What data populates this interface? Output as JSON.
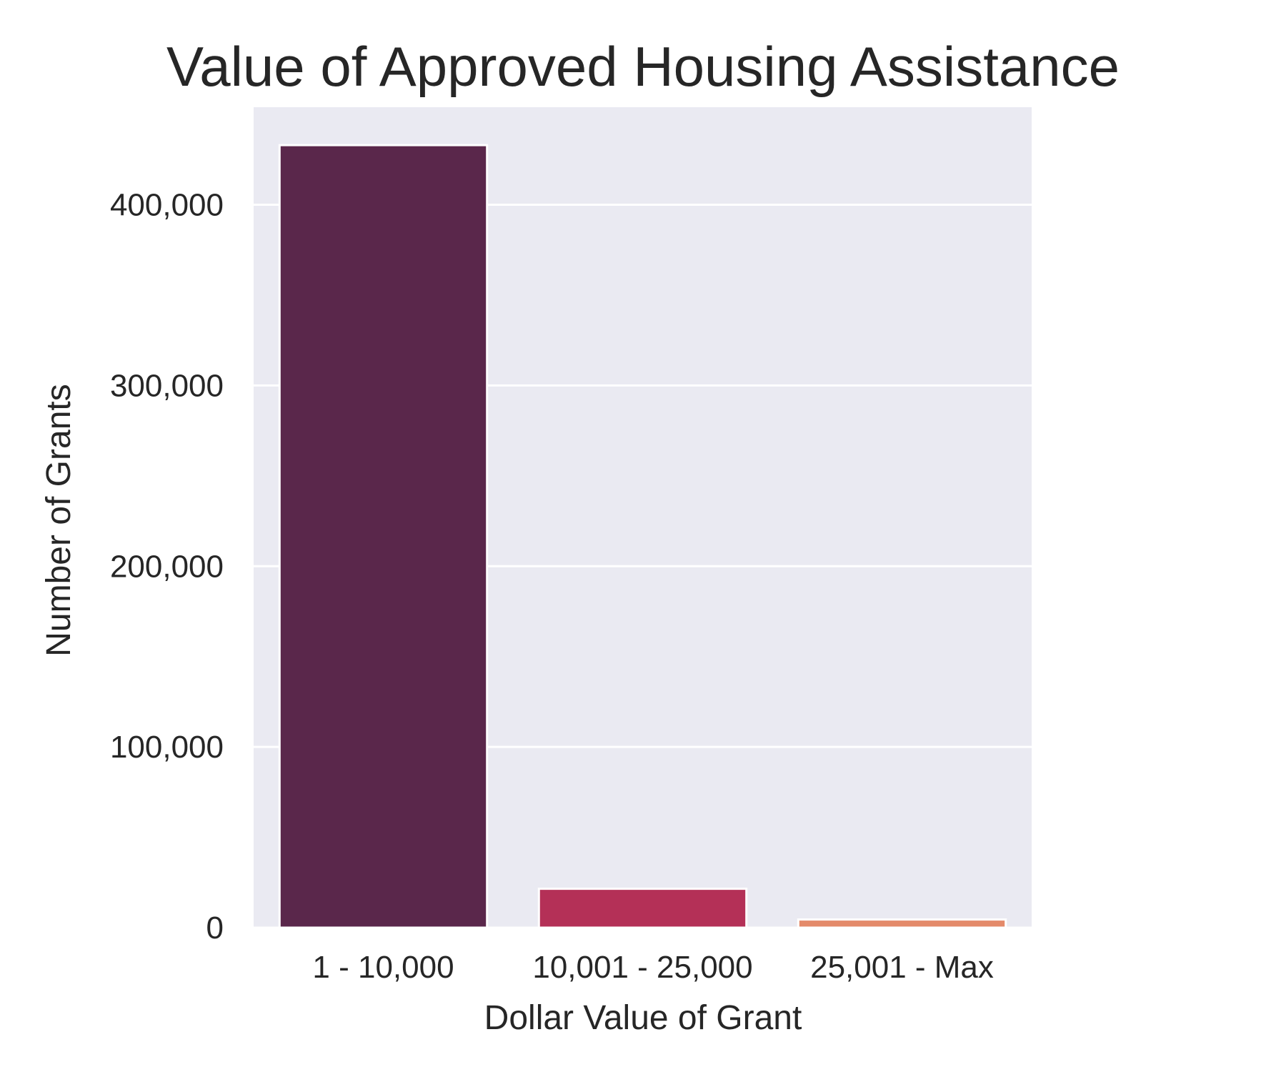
{
  "chart_data": {
    "type": "bar",
    "title": "Value of Approved Housing Assistance",
    "xlabel": "Dollar Value of Grant",
    "ylabel": "Number of Grants",
    "categories": [
      "1 - 10,000",
      "10,001 - 25,000",
      "25,001 - Max"
    ],
    "values": [
      433000,
      21500,
      4500
    ],
    "ylim": [
      0,
      454000
    ],
    "yticks": [
      0,
      100000,
      200000,
      300000,
      400000
    ],
    "ytick_labels": [
      "0",
      "100,000",
      "200,000",
      "300,000",
      "400,000"
    ],
    "grid": true,
    "colors": [
      "#5a274b",
      "#b43057",
      "#e48a6a"
    ],
    "background_color": "#eaeaf2"
  }
}
